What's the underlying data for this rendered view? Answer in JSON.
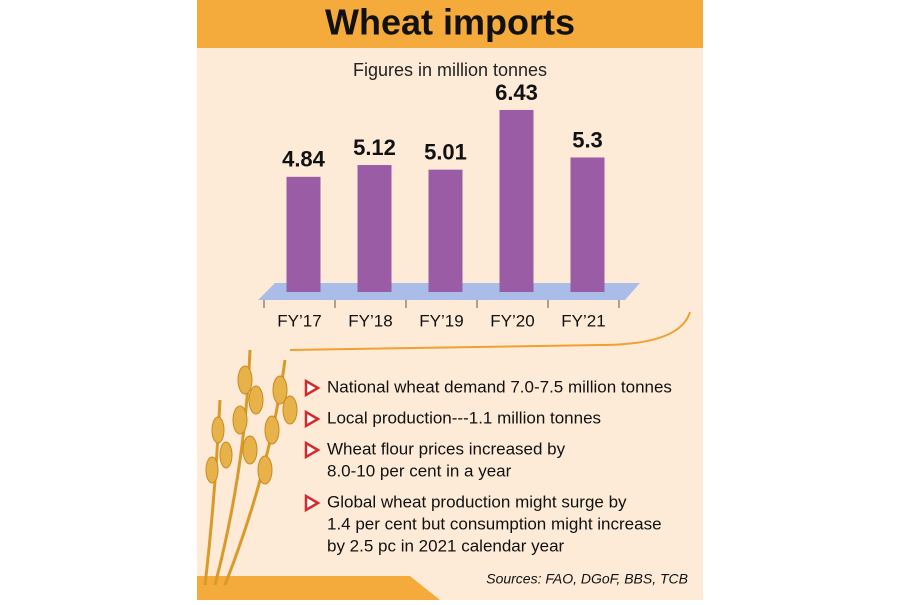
{
  "chart_data": {
    "type": "bar",
    "title": "Wheat imports",
    "subtitle": "Figures in million tonnes",
    "categories": [
      "FY’17",
      "FY’18",
      "FY’19",
      "FY’20",
      "FY’21"
    ],
    "values": [
      4.84,
      5.12,
      5.01,
      6.43,
      5.3
    ],
    "color": "#9b5ca6",
    "ylim": [
      2.1,
      7
    ]
  },
  "notes": [
    [
      "National wheat demand 7.0-7.5 million tonnes"
    ],
    [
      "Local production---1.1 million tonnes"
    ],
    [
      "Wheat flour prices increased by",
      "8.0-10 per cent in a year"
    ],
    [
      "Global wheat production might surge by",
      "1.4 per cent but consumption might increase",
      "by 2.5 pc in 2021 calendar year"
    ]
  ],
  "sources": "Sources: FAO, DGoF, BBS, TCB"
}
